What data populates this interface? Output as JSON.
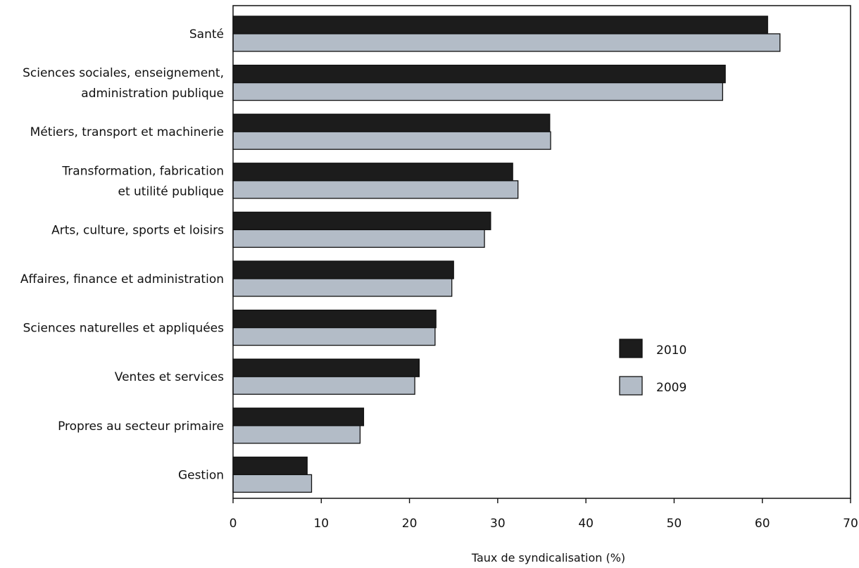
{
  "chart_data": {
    "type": "bar",
    "orientation": "horizontal",
    "xlabel": "Taux de syndicalisation (%)",
    "xlim": [
      0,
      70
    ],
    "xticks": [
      0,
      10,
      20,
      30,
      40,
      50,
      60,
      70
    ],
    "grid": false,
    "legend_position": "right-middle",
    "categories": [
      [
        "Santé"
      ],
      [
        "Sciences sociales, enseignement,",
        "administration publique"
      ],
      [
        "Métiers, transport et machinerie"
      ],
      [
        "Transformation, fabrication",
        "et utilité publique"
      ],
      [
        "Arts, culture, sports et loisirs"
      ],
      [
        "Affaires, finance et administration"
      ],
      [
        "Sciences naturelles et appliquées"
      ],
      [
        "Ventes et services"
      ],
      [
        "Propres au secteur primaire"
      ],
      [
        "Gestion"
      ]
    ],
    "series": [
      {
        "name": "2010",
        "color": "#1c1c1c",
        "values": [
          60.6,
          55.8,
          35.9,
          31.7,
          29.2,
          25.0,
          23.0,
          21.1,
          14.8,
          8.4
        ]
      },
      {
        "name": "2009",
        "color": "#b3bcc7",
        "values": [
          62.0,
          55.5,
          36.0,
          32.3,
          28.5,
          24.8,
          22.9,
          20.6,
          14.4,
          8.9
        ]
      }
    ]
  }
}
